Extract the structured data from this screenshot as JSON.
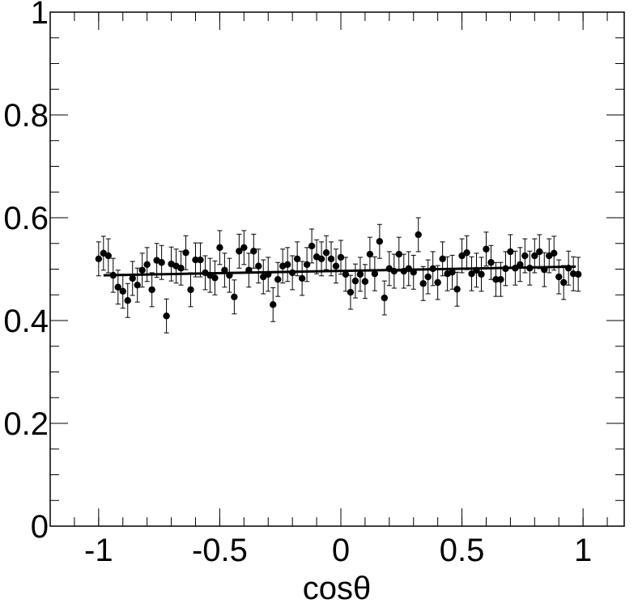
{
  "chart_data": {
    "type": "errorbar",
    "x_label": "cosθ",
    "xlim": [
      -1.2,
      1.17
    ],
    "ylim": [
      0,
      1
    ],
    "xticks": [
      -1,
      -0.5,
      0,
      0.5,
      1
    ],
    "yticks": [
      0,
      0.2,
      0.4,
      0.6,
      0.8,
      1
    ],
    "series": [
      {
        "color": "#000000",
        "x": [
          -1,
          -0.98,
          -0.96,
          -0.94,
          -0.92,
          -0.9,
          -0.88,
          -0.86,
          -0.84,
          -0.82,
          -0.8,
          -0.78,
          -0.76,
          -0.74,
          -0.72,
          -0.7,
          -0.68,
          -0.66,
          -0.64,
          -0.62,
          -0.6,
          -0.58,
          -0.56,
          -0.54,
          -0.52,
          -0.5,
          -0.48,
          -0.46,
          -0.44,
          -0.42,
          -0.4,
          -0.38,
          -0.36,
          -0.34,
          -0.32,
          -0.3,
          -0.28,
          -0.26,
          -0.24,
          -0.22,
          -0.2,
          -0.18,
          -0.16,
          -0.14,
          -0.12,
          -0.1,
          -0.08,
          -0.06,
          -0.04,
          -0.02,
          0,
          0.02,
          0.04,
          0.06,
          0.08,
          0.1,
          0.12,
          0.14,
          0.16,
          0.18,
          0.2,
          0.22,
          0.24,
          0.26,
          0.28,
          0.3,
          0.32,
          0.34,
          0.36,
          0.38,
          0.4,
          0.42,
          0.44,
          0.46,
          0.48,
          0.5,
          0.52,
          0.54,
          0.56,
          0.58,
          0.6,
          0.62,
          0.64,
          0.66,
          0.68,
          0.7,
          0.72,
          0.74,
          0.76,
          0.78,
          0.8,
          0.82,
          0.84,
          0.86,
          0.88,
          0.9,
          0.92,
          0.94,
          0.96,
          0.98
        ],
        "values": [
          0.52,
          0.531,
          0.526,
          0.488,
          0.465,
          0.457,
          0.439,
          0.482,
          0.469,
          0.498,
          0.509,
          0.46,
          0.517,
          0.513,
          0.409,
          0.51,
          0.506,
          0.502,
          0.532,
          0.46,
          0.518,
          0.518,
          0.493,
          0.488,
          0.483,
          0.542,
          0.498,
          0.488,
          0.446,
          0.535,
          0.542,
          0.498,
          0.535,
          0.506,
          0.485,
          0.49,
          0.431,
          0.48,
          0.506,
          0.509,
          0.493,
          0.52,
          0.482,
          0.509,
          0.545,
          0.524,
          0.52,
          0.532,
          0.52,
          0.506,
          0.523,
          0.49,
          0.455,
          0.477,
          0.49,
          0.476,
          0.529,
          0.491,
          0.554,
          0.444,
          0.501,
          0.496,
          0.529,
          0.496,
          0.501,
          0.494,
          0.567,
          0.472,
          0.485,
          0.501,
          0.474,
          0.52,
          0.491,
          0.494,
          0.461,
          0.526,
          0.532,
          0.491,
          0.498,
          0.49,
          0.539,
          0.513,
          0.48,
          0.48,
          0.501,
          0.534,
          0.502,
          0.509,
          0.526,
          0.502,
          0.526,
          0.534,
          0.499,
          0.526,
          0.531,
          0.485,
          0.474,
          0.502,
          0.491,
          0.49
        ],
        "errors": [
          0.033,
          0.033,
          0.033,
          0.033,
          0.033,
          0.033,
          0.033,
          0.033,
          0.033,
          0.033,
          0.033,
          0.033,
          0.033,
          0.033,
          0.033,
          0.033,
          0.033,
          0.033,
          0.033,
          0.033,
          0.033,
          0.033,
          0.033,
          0.033,
          0.033,
          0.033,
          0.033,
          0.033,
          0.033,
          0.033,
          0.033,
          0.033,
          0.033,
          0.033,
          0.033,
          0.033,
          0.033,
          0.033,
          0.033,
          0.033,
          0.033,
          0.033,
          0.033,
          0.033,
          0.033,
          0.033,
          0.033,
          0.033,
          0.033,
          0.033,
          0.033,
          0.033,
          0.033,
          0.033,
          0.033,
          0.033,
          0.033,
          0.033,
          0.033,
          0.033,
          0.033,
          0.033,
          0.033,
          0.033,
          0.033,
          0.033,
          0.033,
          0.033,
          0.033,
          0.033,
          0.033,
          0.033,
          0.033,
          0.033,
          0.033,
          0.033,
          0.033,
          0.033,
          0.033,
          0.033,
          0.033,
          0.033,
          0.033,
          0.033,
          0.033,
          0.033,
          0.033,
          0.033,
          0.033,
          0.033,
          0.033,
          0.033,
          0.033,
          0.033,
          0.033,
          0.033,
          0.033,
          0.033,
          0.033,
          0.033
        ]
      }
    ],
    "fit": {
      "x": [
        -0.98,
        0.97
      ],
      "y": [
        0.488,
        0.505
      ],
      "color": "#000000"
    }
  }
}
